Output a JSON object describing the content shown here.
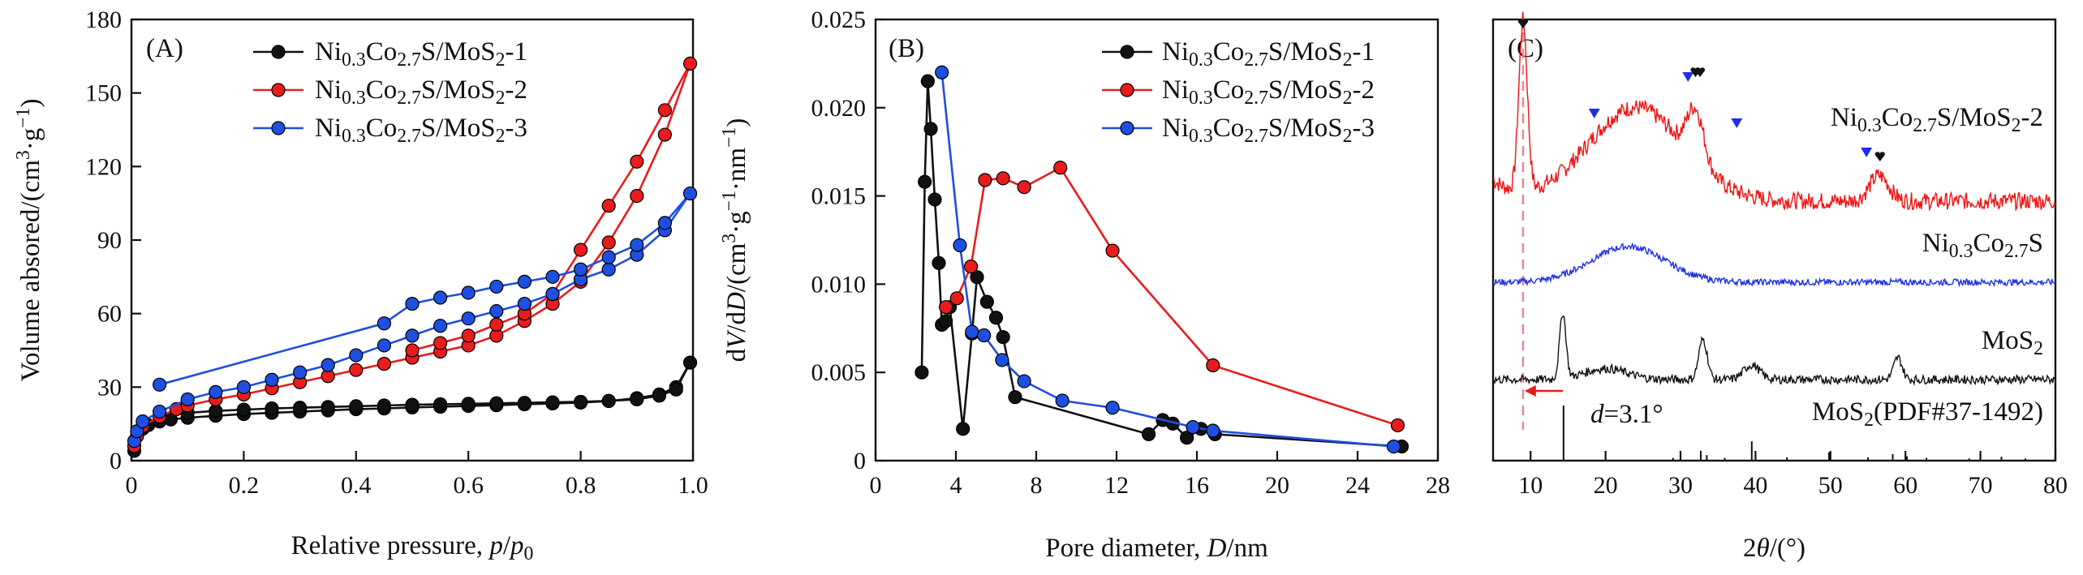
{
  "chart_data": [
    {
      "panel": "(A)",
      "type": "line",
      "xlabel": "Relative pressure, p/p0",
      "xlabel_parts": {
        "main": "Relative pressure, ",
        "italic": "p",
        "slash": "/",
        "italic2": "p",
        "sub": "0"
      },
      "ylabel": "Volume absored/(cm3·g−1)",
      "ylabel_parts": {
        "main": "Volume absored/(cm",
        "sup1": "3",
        "mid": "·g",
        "sup2": "−1",
        "end": ")"
      },
      "xlim": [
        0,
        1.0
      ],
      "ylim": [
        0,
        180
      ],
      "xticks": [
        0,
        0.2,
        0.4,
        0.6,
        0.8,
        1.0
      ],
      "xticklabels": [
        "0",
        "0.2",
        "0.4",
        "0.6",
        "0.8",
        "1.0"
      ],
      "yticks": [
        0,
        30,
        60,
        90,
        120,
        150,
        180
      ],
      "yticklabels": [
        "0",
        "30",
        "60",
        "90",
        "120",
        "150",
        "180"
      ],
      "legend_position": "top-right",
      "series": [
        {
          "name": "Ni0.3Co2.7S/MoS2-1",
          "color": "#111111",
          "x": [
            0.005,
            0.01,
            0.02,
            0.03,
            0.05,
            0.07,
            0.1,
            0.15,
            0.2,
            0.25,
            0.3,
            0.35,
            0.4,
            0.45,
            0.5,
            0.55,
            0.6,
            0.65,
            0.7,
            0.75,
            0.8,
            0.85,
            0.9,
            0.94,
            0.97,
            0.995,
            0.97,
            0.94,
            0.9,
            0.85,
            0.8,
            0.75,
            0.7,
            0.65,
            0.6,
            0.55,
            0.5,
            0.45,
            0.4,
            0.35,
            0.3,
            0.25,
            0.2,
            0.15,
            0.1,
            0.05
          ],
          "y": [
            4,
            10,
            13,
            14.5,
            16,
            16.8,
            17.5,
            18.3,
            19,
            19.5,
            20,
            20.5,
            21,
            21.3,
            21.7,
            22,
            22.3,
            22.6,
            23,
            23.3,
            23.7,
            24.3,
            25.5,
            27,
            30,
            40,
            29,
            26.5,
            25,
            24.4,
            24,
            23.8,
            23.6,
            23.4,
            23.2,
            23,
            22.8,
            22.5,
            22.2,
            21.9,
            21.6,
            21.3,
            20.8,
            20.3,
            19.5,
            18
          ]
        },
        {
          "name": "Ni0.3Co2.7S/MoS2-2",
          "color": "#e81c1c",
          "x": [
            0.005,
            0.01,
            0.02,
            0.05,
            0.08,
            0.1,
            0.15,
            0.2,
            0.25,
            0.3,
            0.35,
            0.4,
            0.45,
            0.5,
            0.55,
            0.6,
            0.65,
            0.7,
            0.75,
            0.8,
            0.85,
            0.9,
            0.95,
            0.995,
            0.95,
            0.9,
            0.85,
            0.8,
            0.75,
            0.7,
            0.65,
            0.6,
            0.55,
            0.5
          ],
          "y": [
            6,
            10,
            14,
            18,
            21,
            22.5,
            25,
            27,
            29.5,
            32,
            34.5,
            37,
            39.5,
            42,
            44.5,
            47,
            51,
            57,
            64,
            73,
            89,
            108,
            133,
            162,
            143,
            122,
            104,
            86,
            68,
            60,
            55.5,
            51,
            48,
            45
          ]
        },
        {
          "name": "Ni0.3Co2.7S/MoS2-3",
          "color": "#1f4fe0",
          "x": [
            0.005,
            0.01,
            0.02,
            0.05,
            0.1,
            0.15,
            0.2,
            0.25,
            0.3,
            0.35,
            0.4,
            0.45,
            0.5,
            0.55,
            0.6,
            0.65,
            0.7,
            0.75,
            0.8,
            0.85,
            0.9,
            0.95,
            0.995,
            0.95,
            0.9,
            0.85,
            0.8,
            0.75,
            0.7,
            0.65,
            0.6,
            0.55,
            0.5,
            0.45,
            0.05
          ],
          "y": [
            8,
            12,
            16,
            20,
            25,
            28,
            30,
            33,
            36,
            39,
            43,
            47,
            51,
            55,
            58,
            61,
            64,
            68,
            74,
            78,
            84,
            94,
            109,
            97,
            88,
            83,
            78,
            75,
            73,
            71,
            68.5,
            66.5,
            64,
            56,
            31
          ]
        }
      ]
    },
    {
      "panel": "(B)",
      "type": "line",
      "xlabel": "Pore diameter, D/nm",
      "xlabel_parts": {
        "main": "Pore diameter, ",
        "italic": "D",
        "end": "/nm"
      },
      "ylabel": "dV/dD/(cm3·g−1·nm−1)",
      "ylabel_parts": {
        "a": "d",
        "b": "V",
        "c": "/d",
        "d": "D",
        "e": "/(cm",
        "sup1": "3",
        "f": "·g",
        "sup2": "−1",
        "g": "·nm",
        "sup3": "−1",
        "h": ")"
      },
      "xlim": [
        0,
        28
      ],
      "ylim": [
        0,
        0.025
      ],
      "xticks": [
        0,
        4,
        8,
        12,
        16,
        20,
        24,
        28
      ],
      "xticklabels": [
        "0",
        "4",
        "8",
        "12",
        "16",
        "20",
        "24",
        "28"
      ],
      "yticks": [
        0,
        0.005,
        0.01,
        0.015,
        0.02,
        0.025
      ],
      "yticklabels": [
        "0",
        "0.005",
        "0.010",
        "0.015",
        "0.020",
        "0.025"
      ],
      "legend_position": "top-right",
      "series": [
        {
          "name": "Ni0.3Co2.7S/MoS2-1",
          "color": "#111111",
          "x": [
            2.3,
            2.45,
            2.6,
            2.75,
            2.95,
            3.15,
            3.3,
            3.5,
            3.7,
            4.35,
            4.8,
            5.05,
            5.55,
            6.0,
            6.35,
            6.95,
            13.6,
            14.3,
            14.8,
            15.5,
            16.2,
            16.9,
            26.2
          ],
          "y": [
            0.005,
            0.0158,
            0.0215,
            0.0188,
            0.0148,
            0.0112,
            0.0077,
            0.0079,
            0.0087,
            0.0018,
            0.0072,
            0.0104,
            0.009,
            0.0081,
            0.007,
            0.0036,
            0.0015,
            0.0023,
            0.0021,
            0.0013,
            0.0018,
            0.0015,
            0.0008
          ]
        },
        {
          "name": "Ni0.3Co2.7S/MoS2-2",
          "color": "#e81c1c",
          "x": [
            3.5,
            4.05,
            4.75,
            5.45,
            6.35,
            7.4,
            9.2,
            11.8,
            16.8,
            26.0
          ],
          "y": [
            0.0087,
            0.0092,
            0.011,
            0.0159,
            0.016,
            0.0155,
            0.0166,
            0.0119,
            0.0054,
            0.002
          ]
        },
        {
          "name": "Ni0.3Co2.7S/MoS2-3",
          "color": "#1f4fe0",
          "x": [
            3.3,
            4.2,
            4.8,
            5.4,
            6.3,
            7.4,
            9.3,
            11.8,
            15.8,
            16.8,
            25.8
          ],
          "y": [
            0.022,
            0.0122,
            0.0073,
            0.0071,
            0.0057,
            0.0045,
            0.0034,
            0.003,
            0.0019,
            0.0017,
            0.0008
          ]
        }
      ]
    },
    {
      "panel": "(C)",
      "type": "line",
      "xlabel": "2θ/(°)",
      "xlabel_parts": {
        "a": "2",
        "b": "θ",
        "c": "/(°)"
      },
      "xlim": [
        5,
        80
      ],
      "xticks": [
        10,
        20,
        30,
        40,
        50,
        60,
        70,
        80
      ],
      "xticklabels": [
        "10",
        "20",
        "30",
        "40",
        "50",
        "60",
        "70",
        "80"
      ],
      "y_axis_labels": false,
      "series": [
        {
          "name": "Ni0.3Co2.7S/MoS2-2",
          "label_parts": {
            "a": "Ni",
            "s1": "0.3",
            "b": "Co",
            "s2": "2.7",
            "c": "S/MoS",
            "s3": "2",
            "d": "-2"
          },
          "color": "#f21212",
          "baseline": 0.0,
          "peaks": [
            {
              "pos": 9.0,
              "height": 1.0,
              "width": 0.8
            },
            {
              "pos": 24.0,
              "height": 0.55,
              "width": 9.0
            },
            {
              "pos": 32.0,
              "height": 0.3,
              "width": 1.6
            },
            {
              "pos": 56.5,
              "height": 0.15,
              "width": 1.8
            }
          ],
          "noise": 0.05
        },
        {
          "name": "Ni0.3Co2.7S",
          "label_parts": {
            "a": "Ni",
            "s1": "0.3",
            "b": "Co",
            "s2": "2.7",
            "c": "S"
          },
          "color": "#1f2fe6",
          "baseline": 0.0,
          "peaks": [
            {
              "pos": 23.0,
              "height": 0.55,
              "width": 7.0
            }
          ],
          "noise": 0.05
        },
        {
          "name": "MoS2",
          "label_parts": {
            "a": "MoS",
            "s1": "2"
          },
          "color": "#111111",
          "baseline": 0.0,
          "peaks": [
            {
              "pos": 14.3,
              "height": 0.9,
              "width": 0.6
            },
            {
              "pos": 33.0,
              "height": 0.55,
              "width": 0.8
            },
            {
              "pos": 39.5,
              "height": 0.2,
              "width": 1.5
            },
            {
              "pos": 59.0,
              "height": 0.3,
              "width": 0.8
            },
            {
              "pos": 20.0,
              "height": 0.15,
              "width": 4.0
            }
          ],
          "noise": 0.06
        }
      ],
      "reference": {
        "name": "MoS2(PDF#37-1492)",
        "label_parts": {
          "a": "MoS",
          "s1": "2",
          "b": "(PDF#37-1492)"
        },
        "color": "#111111",
        "lines": [
          {
            "pos": 14.4,
            "h": 1.0
          },
          {
            "pos": 29.0,
            "h": 0.05
          },
          {
            "pos": 32.7,
            "h": 0.18
          },
          {
            "pos": 33.5,
            "h": 0.1
          },
          {
            "pos": 35.9,
            "h": 0.05
          },
          {
            "pos": 39.5,
            "h": 0.35
          },
          {
            "pos": 44.2,
            "h": 0.06
          },
          {
            "pos": 49.8,
            "h": 0.15
          },
          {
            "pos": 55.0,
            "h": 0.06
          },
          {
            "pos": 58.3,
            "h": 0.12
          },
          {
            "pos": 60.2,
            "h": 0.08
          },
          {
            "pos": 62.8,
            "h": 0.05
          },
          {
            "pos": 68.5,
            "h": 0.04
          },
          {
            "pos": 72.8,
            "h": 0.07
          },
          {
            "pos": 76.0,
            "h": 0.04
          }
        ]
      },
      "markers_blue_triangle": [
        18.5,
        31.0,
        37.5,
        54.8
      ],
      "markers_black_heart": [
        9.0,
        32.0,
        32.6,
        56.6
      ],
      "dashed_line_pos": 9.0,
      "arrow": {
        "from": 14.3,
        "to": 9.2
      },
      "annotation": {
        "italic": "d",
        "value": "=3.1°"
      }
    }
  ],
  "colors": {
    "black": "#111111",
    "red": "#e81c1c",
    "blue": "#1f4fe0",
    "dash": "#e8858f"
  }
}
